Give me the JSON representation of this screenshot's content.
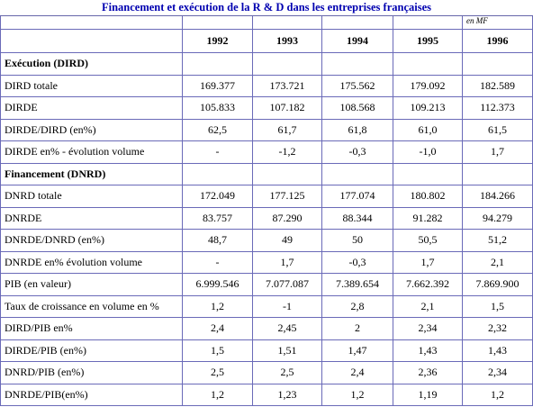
{
  "title": "Financement et exécution de la R & D dans les entreprises françaises",
  "unit": "en MF",
  "table": {
    "years": [
      "1992",
      "1993",
      "1994",
      "1995",
      "1996"
    ],
    "sections": [
      {
        "heading": "Exécution (DIRD)",
        "rows": [
          {
            "label": "DIRD totale",
            "values": [
              "169.377",
              "173.721",
              "175.562",
              "179.092",
              "182.589"
            ]
          },
          {
            "label": "DIRDE",
            "values": [
              "105.833",
              "107.182",
              "108.568",
              "109.213",
              "112.373"
            ]
          },
          {
            "label": "DIRDE/DIRD (en%)",
            "values": [
              "62,5",
              "61,7",
              "61,8",
              "61,0",
              "61,5"
            ]
          },
          {
            "label": "DIRDE en% - évolution volume",
            "values": [
              "-",
              "-1,2",
              "-0,3",
              "-1,0",
              "1,7"
            ]
          }
        ]
      },
      {
        "heading": "Financement (DNRD)",
        "rows": [
          {
            "label": "DNRD totale",
            "values": [
              "172.049",
              "177.125",
              "177.074",
              "180.802",
              "184.266"
            ]
          },
          {
            "label": "DNRDE",
            "values": [
              "83.757",
              "87.290",
              "88.344",
              "91.282",
              "94.279"
            ]
          },
          {
            "label": "DNRDE/DNRD (en%)",
            "values": [
              "48,7",
              "49",
              "50",
              "50,5",
              "51,2"
            ]
          },
          {
            "label": "DNRDE en% évolution volume",
            "values": [
              "-",
              "1,7",
              "-0,3",
              "1,7",
              "2,1"
            ]
          },
          {
            "label": "PIB (en valeur)",
            "values": [
              "6.999.546",
              "7.077.087",
              "7.389.654",
              "7.662.392",
              "7.869.900"
            ]
          },
          {
            "label": "Taux de croissance en volume en %",
            "values": [
              "1,2",
              "-1",
              "2,8",
              "2,1",
              "1,5"
            ]
          },
          {
            "label": "DIRD/PIB en%",
            "values": [
              "2,4",
              "2,45",
              "2",
              "2,34",
              "2,32"
            ]
          },
          {
            "label": "DIRDE/PIB (en%)",
            "values": [
              "1,5",
              "1,51",
              "1,47",
              "1,43",
              "1,43"
            ]
          },
          {
            "label": "DNRD/PIB (en%)",
            "values": [
              "2,5",
              "2,5",
              "2,4",
              "2,36",
              "2,34"
            ]
          },
          {
            "label": "DNRDE/PIB(en%)",
            "values": [
              "1,2",
              "1,23",
              "1,2",
              "1,19",
              "1,2"
            ]
          }
        ]
      }
    ]
  }
}
